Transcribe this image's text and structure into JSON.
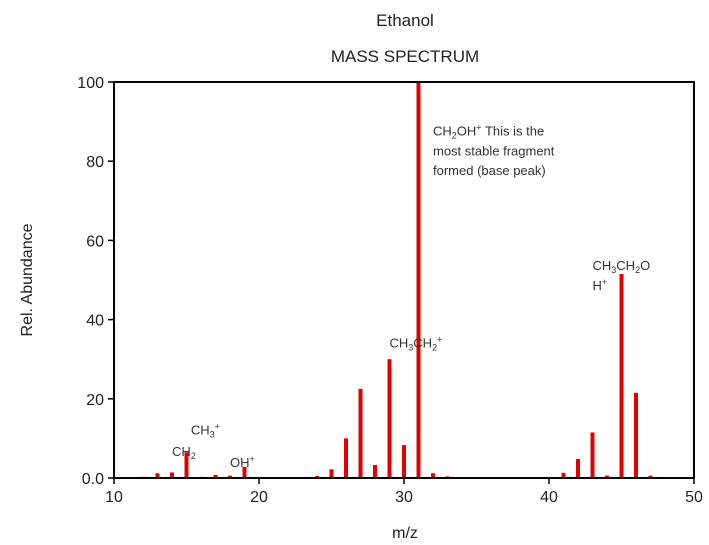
{
  "chart_data": {
    "type": "bar",
    "title": "Ethanol",
    "subtitle": "MASS SPECTRUM",
    "xlabel": "m/z",
    "ylabel": "Rel. Abundance",
    "xlim": [
      10,
      50
    ],
    "ylim": [
      0,
      100
    ],
    "x_ticks": [
      10,
      20,
      30,
      40,
      50
    ],
    "y_ticks": [
      0.0,
      20,
      40,
      60,
      80,
      100
    ],
    "y_tick_labels": [
      "0.0",
      "20",
      "40",
      "60",
      "80",
      "100"
    ],
    "grid": false,
    "bar_color": "#e00000",
    "series": [
      {
        "x": [
          12,
          13,
          14,
          15,
          16,
          17,
          18,
          19,
          24,
          25,
          26,
          27,
          28,
          29,
          30,
          31,
          32,
          33,
          41,
          42,
          43,
          44,
          45,
          46,
          47
        ],
        "values": [
          0.3,
          1.2,
          1.4,
          6.5,
          0.3,
          0.8,
          0.6,
          2.8,
          0.5,
          2.2,
          10,
          22.5,
          3.3,
          30,
          8.3,
          100,
          1.2,
          0.4,
          1.3,
          4.8,
          11.5,
          0.6,
          51.5,
          21.5,
          0.6
        ]
      }
    ],
    "annotations": [
      {
        "x": 14,
        "y": 5.5,
        "text": "CH",
        "sub": "2"
      },
      {
        "x": 15.3,
        "y": 11,
        "text": "CH",
        "sub": "3",
        "sup": "+"
      },
      {
        "x": 18,
        "y": 2.8,
        "text": "OH",
        "sup": "+"
      },
      {
        "x": 29,
        "y": 33,
        "text": "CH",
        "sub": "3",
        "text2": "CH",
        "sub2": "2",
        "sup": "+"
      },
      {
        "x": 32,
        "y": 86.5,
        "text": "CH",
        "sub": "2",
        "text2": "OH",
        "sup": "+",
        "tail": "  This is the"
      },
      {
        "x": 32,
        "y": 81.5,
        "text": "most stable fragment"
      },
      {
        "x": 32,
        "y": 76.5,
        "text": "formed (base peak)"
      },
      {
        "x": 43,
        "y": 52.5,
        "text": "CH",
        "sub": "3",
        "text2": "CH",
        "sub2": "2",
        "text3": "O"
      },
      {
        "x": 43,
        "y": 47.5,
        "text": "H",
        "sup": "+"
      }
    ]
  }
}
